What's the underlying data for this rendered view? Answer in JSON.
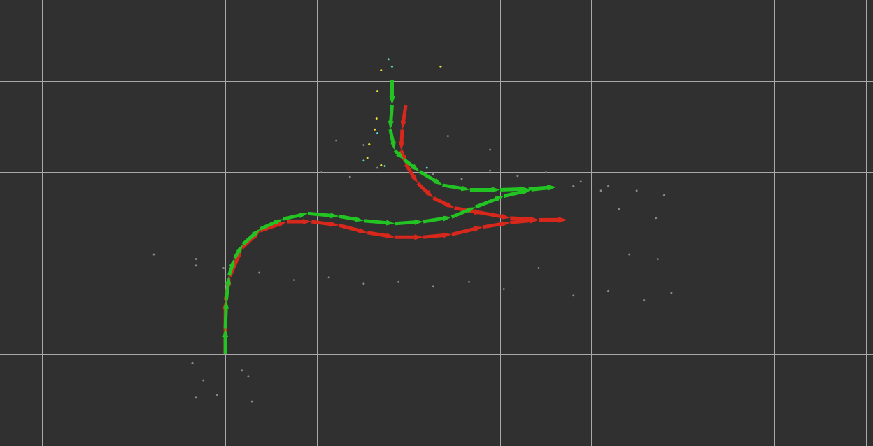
{
  "chart_data": {
    "type": "line",
    "grid": true,
    "tick_labels": false,
    "xlim": [
      -2.46,
      7.07
    ],
    "ylim": [
      -1,
      3.89
    ],
    "xticks": [
      -2,
      -1,
      0,
      1,
      2,
      3,
      4,
      5,
      6,
      7
    ],
    "yticks": [
      0,
      1,
      2,
      3
    ],
    "series": [
      {
        "type": "scatter",
        "marker": "dot",
        "color": "#8a8a8a",
        "x": [
          1.05,
          1.36,
          1.66,
          2.27,
          2.58,
          2.89,
          3.19,
          3.5,
          3.88,
          4.18,
          4.49,
          4.79,
          1.21,
          1.51,
          2.43,
          2.89,
          -0.32,
          -0.02,
          0.37,
          0.75,
          1.13,
          1.51,
          1.89,
          2.27,
          2.66,
          3.04,
          3.42,
          3.8,
          4.18,
          4.57,
          4.87,
          -0.78,
          -0.32,
          4.41,
          4.72,
          -0.36,
          -0.24,
          -0.09,
          0.18,
          0.25,
          0.29,
          -0.32,
          3.8,
          4.1,
          4.3,
          4.7
        ],
        "y": [
          2.0,
          1.95,
          2.05,
          1.98,
          1.93,
          2.02,
          1.96,
          2.0,
          1.9,
          1.85,
          1.8,
          1.75,
          2.35,
          2.3,
          2.4,
          2.25,
          0.98,
          0.95,
          0.9,
          0.82,
          0.85,
          0.78,
          0.8,
          0.75,
          0.8,
          0.72,
          0.95,
          0.65,
          0.7,
          0.6,
          0.68,
          1.1,
          1.05,
          1.1,
          1.05,
          -0.09,
          -0.28,
          -0.44,
          -0.17,
          -0.24,
          -0.51,
          -0.47,
          1.85,
          1.8,
          1.6,
          1.5
        ]
      },
      {
        "type": "scatter",
        "marker": "dot",
        "color": "#e6e03c",
        "x": [
          1.7,
          1.66,
          1.65,
          1.63,
          1.57,
          1.55,
          1.7,
          2.35
        ],
        "y": [
          3.12,
          2.89,
          2.59,
          2.47,
          2.31,
          2.16,
          2.08,
          3.16
        ]
      },
      {
        "type": "scatter",
        "marker": "dot",
        "color": "#5fd8d0",
        "x": [
          1.78,
          1.82,
          1.51,
          1.74,
          2.2,
          1.66
        ],
        "y": [
          3.24,
          3.16,
          2.13,
          2.07,
          2.05,
          2.43
        ]
      },
      {
        "type": "line",
        "marker": "arrow",
        "color": "#d8281c",
        "x": [
          0,
          0,
          0.05,
          0.18,
          0.38,
          0.67,
          0.94,
          1.24,
          1.55,
          1.85,
          2.16,
          2.47,
          2.81,
          3.11,
          3.42,
          3.73
        ],
        "y": [
          0.02,
          0.6,
          0.86,
          1.17,
          1.36,
          1.46,
          1.46,
          1.42,
          1.34,
          1.29,
          1.29,
          1.32,
          1.4,
          1.45,
          1.48,
          1.48
        ]
      },
      {
        "type": "line",
        "marker": "arrow",
        "color": "#d8281c",
        "x": [
          1.97,
          1.93,
          1.92,
          1.97,
          2.1,
          2.27,
          2.5,
          2.81,
          3.11,
          3.42,
          3.73
        ],
        "y": [
          2.74,
          2.47,
          2.24,
          2.09,
          1.88,
          1.72,
          1.61,
          1.55,
          1.5,
          1.48,
          1.48
        ]
      },
      {
        "type": "line",
        "marker": "arrow",
        "color": "#22c322",
        "x": [
          0,
          0,
          0.01,
          0.04,
          0.1,
          0.19,
          0.38,
          0.63,
          0.9,
          1.24,
          1.51,
          1.85,
          2.16,
          2.47,
          2.73,
          3.04,
          3.34,
          3.61
        ],
        "y": [
          0.01,
          0.29,
          0.6,
          0.87,
          1.06,
          1.21,
          1.38,
          1.49,
          1.55,
          1.52,
          1.47,
          1.44,
          1.46,
          1.51,
          1.62,
          1.74,
          1.81,
          1.84
        ]
      },
      {
        "type": "line",
        "marker": "arrow",
        "color": "#22c322",
        "x": [
          1.82,
          1.82,
          1.8,
          1.85,
          1.95,
          2.12,
          2.37,
          2.67,
          3.0,
          3.31,
          3.61
        ],
        "y": [
          3.01,
          2.74,
          2.47,
          2.24,
          2.14,
          2.01,
          1.86,
          1.81,
          1.81,
          1.82,
          1.84
        ]
      }
    ]
  }
}
